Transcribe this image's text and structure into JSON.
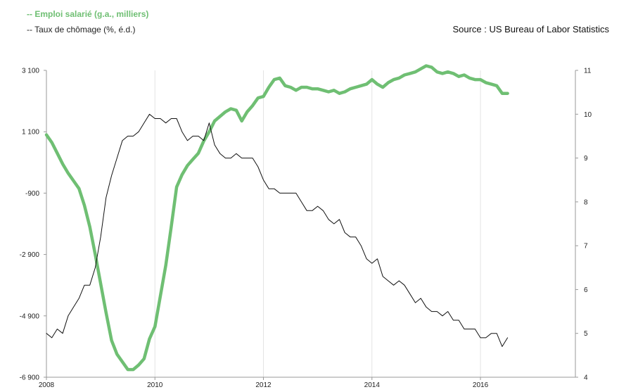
{
  "legend": {
    "series1": "-- Emploi salarié (g.a., milliers)",
    "series2": "-- Taux de chômage (%, é.d.)"
  },
  "source": "Source : US Bureau of Labor Statistics",
  "colors": {
    "employment": "#6fbf73",
    "unemployment": "#111111",
    "grid": "#e3e3e3",
    "axis": "#999999"
  },
  "chart_data": {
    "type": "line",
    "x_ticks": [
      "2008",
      "2010",
      "2012",
      "2014",
      "2016"
    ],
    "x_tick_values": [
      2008,
      2010,
      2012,
      2014,
      2016
    ],
    "xlim": [
      2008,
      2017.75
    ],
    "y_left": {
      "ticks": [
        "3 100",
        "1 100",
        "-900",
        "-2 900",
        "-4 900",
        "-6 900"
      ],
      "tick_values": [
        3100,
        1100,
        -900,
        -2900,
        -4900,
        -6900
      ],
      "ylim": [
        -6900,
        3100
      ]
    },
    "y_right": {
      "ticks": [
        "11",
        "10",
        "9",
        "8",
        "7",
        "6",
        "5",
        "4"
      ],
      "tick_values": [
        11,
        10,
        9,
        8,
        7,
        6,
        5,
        4
      ],
      "ylim": [
        4,
        11
      ]
    },
    "grid": {
      "vertical": true,
      "horizontal": false
    },
    "series": [
      {
        "key": "employment",
        "axis": "left",
        "x": [
          2008.0,
          2008.1,
          2008.2,
          2008.3,
          2008.4,
          2008.5,
          2008.6,
          2008.7,
          2008.8,
          2008.9,
          2009.0,
          2009.1,
          2009.2,
          2009.3,
          2009.4,
          2009.5,
          2009.6,
          2009.7,
          2009.8,
          2009.9,
          2010.0,
          2010.1,
          2010.2,
          2010.3,
          2010.4,
          2010.5,
          2010.6,
          2010.7,
          2010.8,
          2010.9,
          2011.0,
          2011.1,
          2011.2,
          2011.3,
          2011.4,
          2011.5,
          2011.6,
          2011.7,
          2011.8,
          2011.9,
          2012.0,
          2012.1,
          2012.2,
          2012.3,
          2012.4,
          2012.5,
          2012.6,
          2012.7,
          2012.8,
          2012.9,
          2013.0,
          2013.1,
          2013.2,
          2013.3,
          2013.4,
          2013.5,
          2013.6,
          2013.7,
          2013.8,
          2013.9,
          2014.0,
          2014.1,
          2014.2,
          2014.3,
          2014.4,
          2014.5,
          2014.6,
          2014.7,
          2014.8,
          2014.9,
          2015.0,
          2015.1,
          2015.2,
          2015.3,
          2015.4,
          2015.5,
          2015.6,
          2015.7,
          2015.8,
          2015.9,
          2016.0,
          2016.1,
          2016.2,
          2016.3,
          2016.4,
          2016.5
        ],
        "values": [
          1000,
          750,
          400,
          50,
          -250,
          -500,
          -750,
          -1300,
          -2000,
          -2900,
          -3850,
          -4800,
          -5700,
          -6150,
          -6400,
          -6650,
          -6650,
          -6500,
          -6300,
          -5650,
          -5250,
          -4250,
          -3250,
          -2000,
          -700,
          -300,
          0,
          200,
          400,
          800,
          1100,
          1450,
          1600,
          1750,
          1850,
          1800,
          1450,
          1750,
          1950,
          2200,
          2250,
          2550,
          2800,
          2850,
          2600,
          2550,
          2450,
          2550,
          2550,
          2500,
          2500,
          2450,
          2400,
          2450,
          2350,
          2400,
          2500,
          2550,
          2600,
          2650,
          2800,
          2650,
          2550,
          2700,
          2800,
          2850,
          2950,
          3000,
          3050,
          3150,
          3250,
          3200,
          3050,
          3000,
          3050,
          3000,
          2900,
          2950,
          2850,
          2800,
          2800,
          2700,
          2650,
          2600,
          2350,
          2350
        ]
      },
      {
        "key": "unemployment",
        "axis": "right",
        "x": [
          2008.0,
          2008.1,
          2008.2,
          2008.3,
          2008.4,
          2008.5,
          2008.6,
          2008.7,
          2008.8,
          2008.9,
          2009.0,
          2009.1,
          2009.2,
          2009.3,
          2009.4,
          2009.5,
          2009.6,
          2009.7,
          2009.8,
          2009.9,
          2010.0,
          2010.1,
          2010.2,
          2010.3,
          2010.4,
          2010.5,
          2010.6,
          2010.7,
          2010.8,
          2010.9,
          2011.0,
          2011.1,
          2011.2,
          2011.3,
          2011.4,
          2011.5,
          2011.6,
          2011.7,
          2011.8,
          2011.9,
          2012.0,
          2012.1,
          2012.2,
          2012.3,
          2012.4,
          2012.5,
          2012.6,
          2012.7,
          2012.8,
          2012.9,
          2013.0,
          2013.1,
          2013.2,
          2013.3,
          2013.4,
          2013.5,
          2013.6,
          2013.7,
          2013.8,
          2013.9,
          2014.0,
          2014.1,
          2014.2,
          2014.3,
          2014.4,
          2014.5,
          2014.6,
          2014.7,
          2014.8,
          2014.9,
          2015.0,
          2015.1,
          2015.2,
          2015.3,
          2015.4,
          2015.5,
          2015.6,
          2015.7,
          2015.8,
          2015.9,
          2016.0,
          2016.1,
          2016.2,
          2016.3,
          2016.4,
          2016.5
        ],
        "values": [
          5.0,
          4.9,
          5.1,
          5.0,
          5.4,
          5.6,
          5.8,
          6.1,
          6.1,
          6.5,
          7.2,
          8.1,
          8.6,
          9.0,
          9.4,
          9.5,
          9.5,
          9.6,
          9.8,
          10.0,
          9.9,
          9.9,
          9.8,
          9.9,
          9.9,
          9.6,
          9.4,
          9.5,
          9.5,
          9.4,
          9.8,
          9.3,
          9.1,
          9.0,
          9.0,
          9.1,
          9.0,
          9.0,
          9.0,
          8.8,
          8.5,
          8.3,
          8.3,
          8.2,
          8.2,
          8.2,
          8.2,
          8.0,
          7.8,
          7.8,
          7.9,
          7.8,
          7.6,
          7.5,
          7.6,
          7.3,
          7.2,
          7.2,
          7.0,
          6.7,
          6.6,
          6.7,
          6.3,
          6.2,
          6.1,
          6.2,
          6.1,
          5.9,
          5.7,
          5.8,
          5.6,
          5.5,
          5.5,
          5.4,
          5.5,
          5.3,
          5.3,
          5.1,
          5.1,
          5.1,
          4.9,
          4.9,
          5.0,
          5.0,
          4.7,
          4.9
        ]
      }
    ]
  }
}
